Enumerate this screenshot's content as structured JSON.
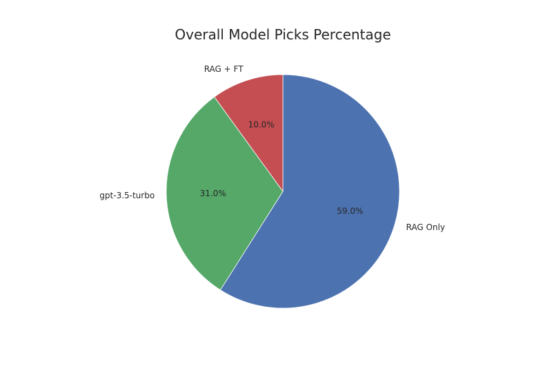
{
  "chart_data": {
    "type": "pie",
    "title": "Overall Model Picks Percentage",
    "slices": [
      {
        "label": "RAG Only",
        "value": 59.0,
        "pct_label": "59.0%",
        "color": "#4c72b0"
      },
      {
        "label": "gpt-3.5-turbo",
        "value": 31.0,
        "pct_label": "31.0%",
        "color": "#55a868"
      },
      {
        "label": "RAG + FT",
        "value": 10.0,
        "pct_label": "10.0%",
        "color": "#c44e52"
      }
    ],
    "start_angle_deg": 90,
    "direction": "clockwise",
    "legend": "none"
  }
}
